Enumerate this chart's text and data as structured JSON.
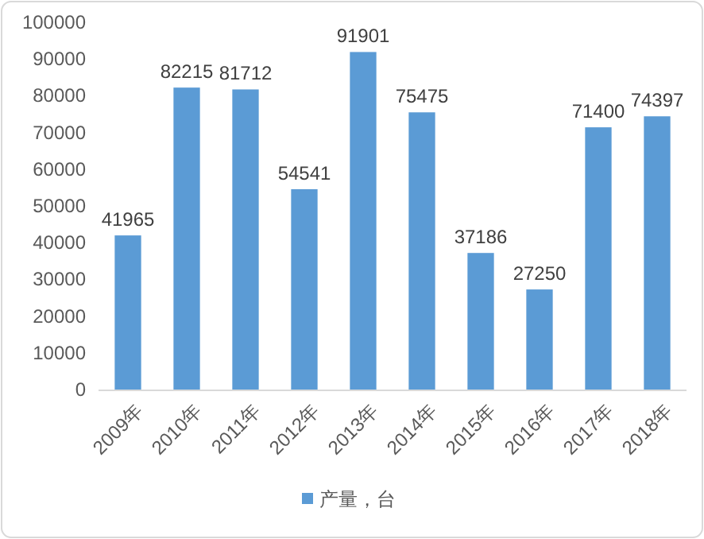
{
  "chart_data": {
    "type": "bar",
    "categories": [
      "2009年",
      "2010年",
      "2011年",
      "2012年",
      "2013年",
      "2014年",
      "2015年",
      "2016年",
      "2017年",
      "2018年"
    ],
    "series": [
      {
        "name": "产量，台",
        "color": "#5b9bd5",
        "values": [
          41965,
          82215,
          81712,
          54541,
          91901,
          75475,
          37186,
          27250,
          71400,
          74397
        ]
      }
    ],
    "ylim": [
      0,
      100000
    ],
    "yticks": [
      0,
      10000,
      20000,
      30000,
      40000,
      50000,
      60000,
      70000,
      80000,
      90000,
      100000
    ],
    "data_labels": true,
    "legend": "bottom"
  }
}
